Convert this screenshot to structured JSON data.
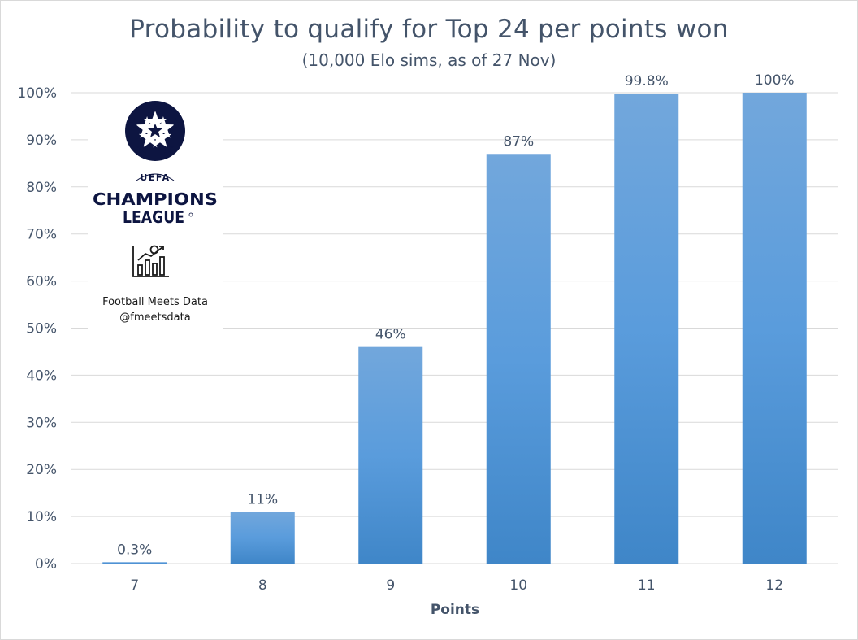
{
  "chart_data": {
    "type": "bar",
    "title": "Probability to qualify for Top 24 per points won",
    "subtitle": "(10,000 Elo sims, as of 27 Nov)",
    "xlabel": "Points",
    "ylabel": "",
    "categories": [
      "7",
      "8",
      "9",
      "10",
      "11",
      "12"
    ],
    "values": [
      0.3,
      11,
      46,
      87,
      99.8,
      100
    ],
    "data_labels": [
      "0.3%",
      "11%",
      "46%",
      "87%",
      "99.8%",
      "100%"
    ],
    "ylim": [
      0,
      100
    ],
    "yticks": [
      0,
      10,
      20,
      30,
      40,
      50,
      60,
      70,
      80,
      90,
      100
    ],
    "ytick_labels": [
      "0%",
      "10%",
      "20%",
      "30%",
      "40%",
      "50%",
      "60%",
      "70%",
      "80%",
      "90%",
      "100%"
    ],
    "grid": true,
    "legend": "none",
    "colors": {
      "bar_top": "#72a7dc",
      "bar_bottom": "#3f86c8",
      "grid": "#d9d9d9",
      "text": "#44546a"
    }
  },
  "logo": {
    "wordmark_small": "UEFA",
    "wordmark_line1": "CHAMPIONS",
    "wordmark_line2": "LEAGUE",
    "icon": "starball-icon",
    "brand_icon": "chart-with-ball-icon",
    "brand_name": "Football Meets Data",
    "brand_handle": "@fmeetsdata"
  }
}
